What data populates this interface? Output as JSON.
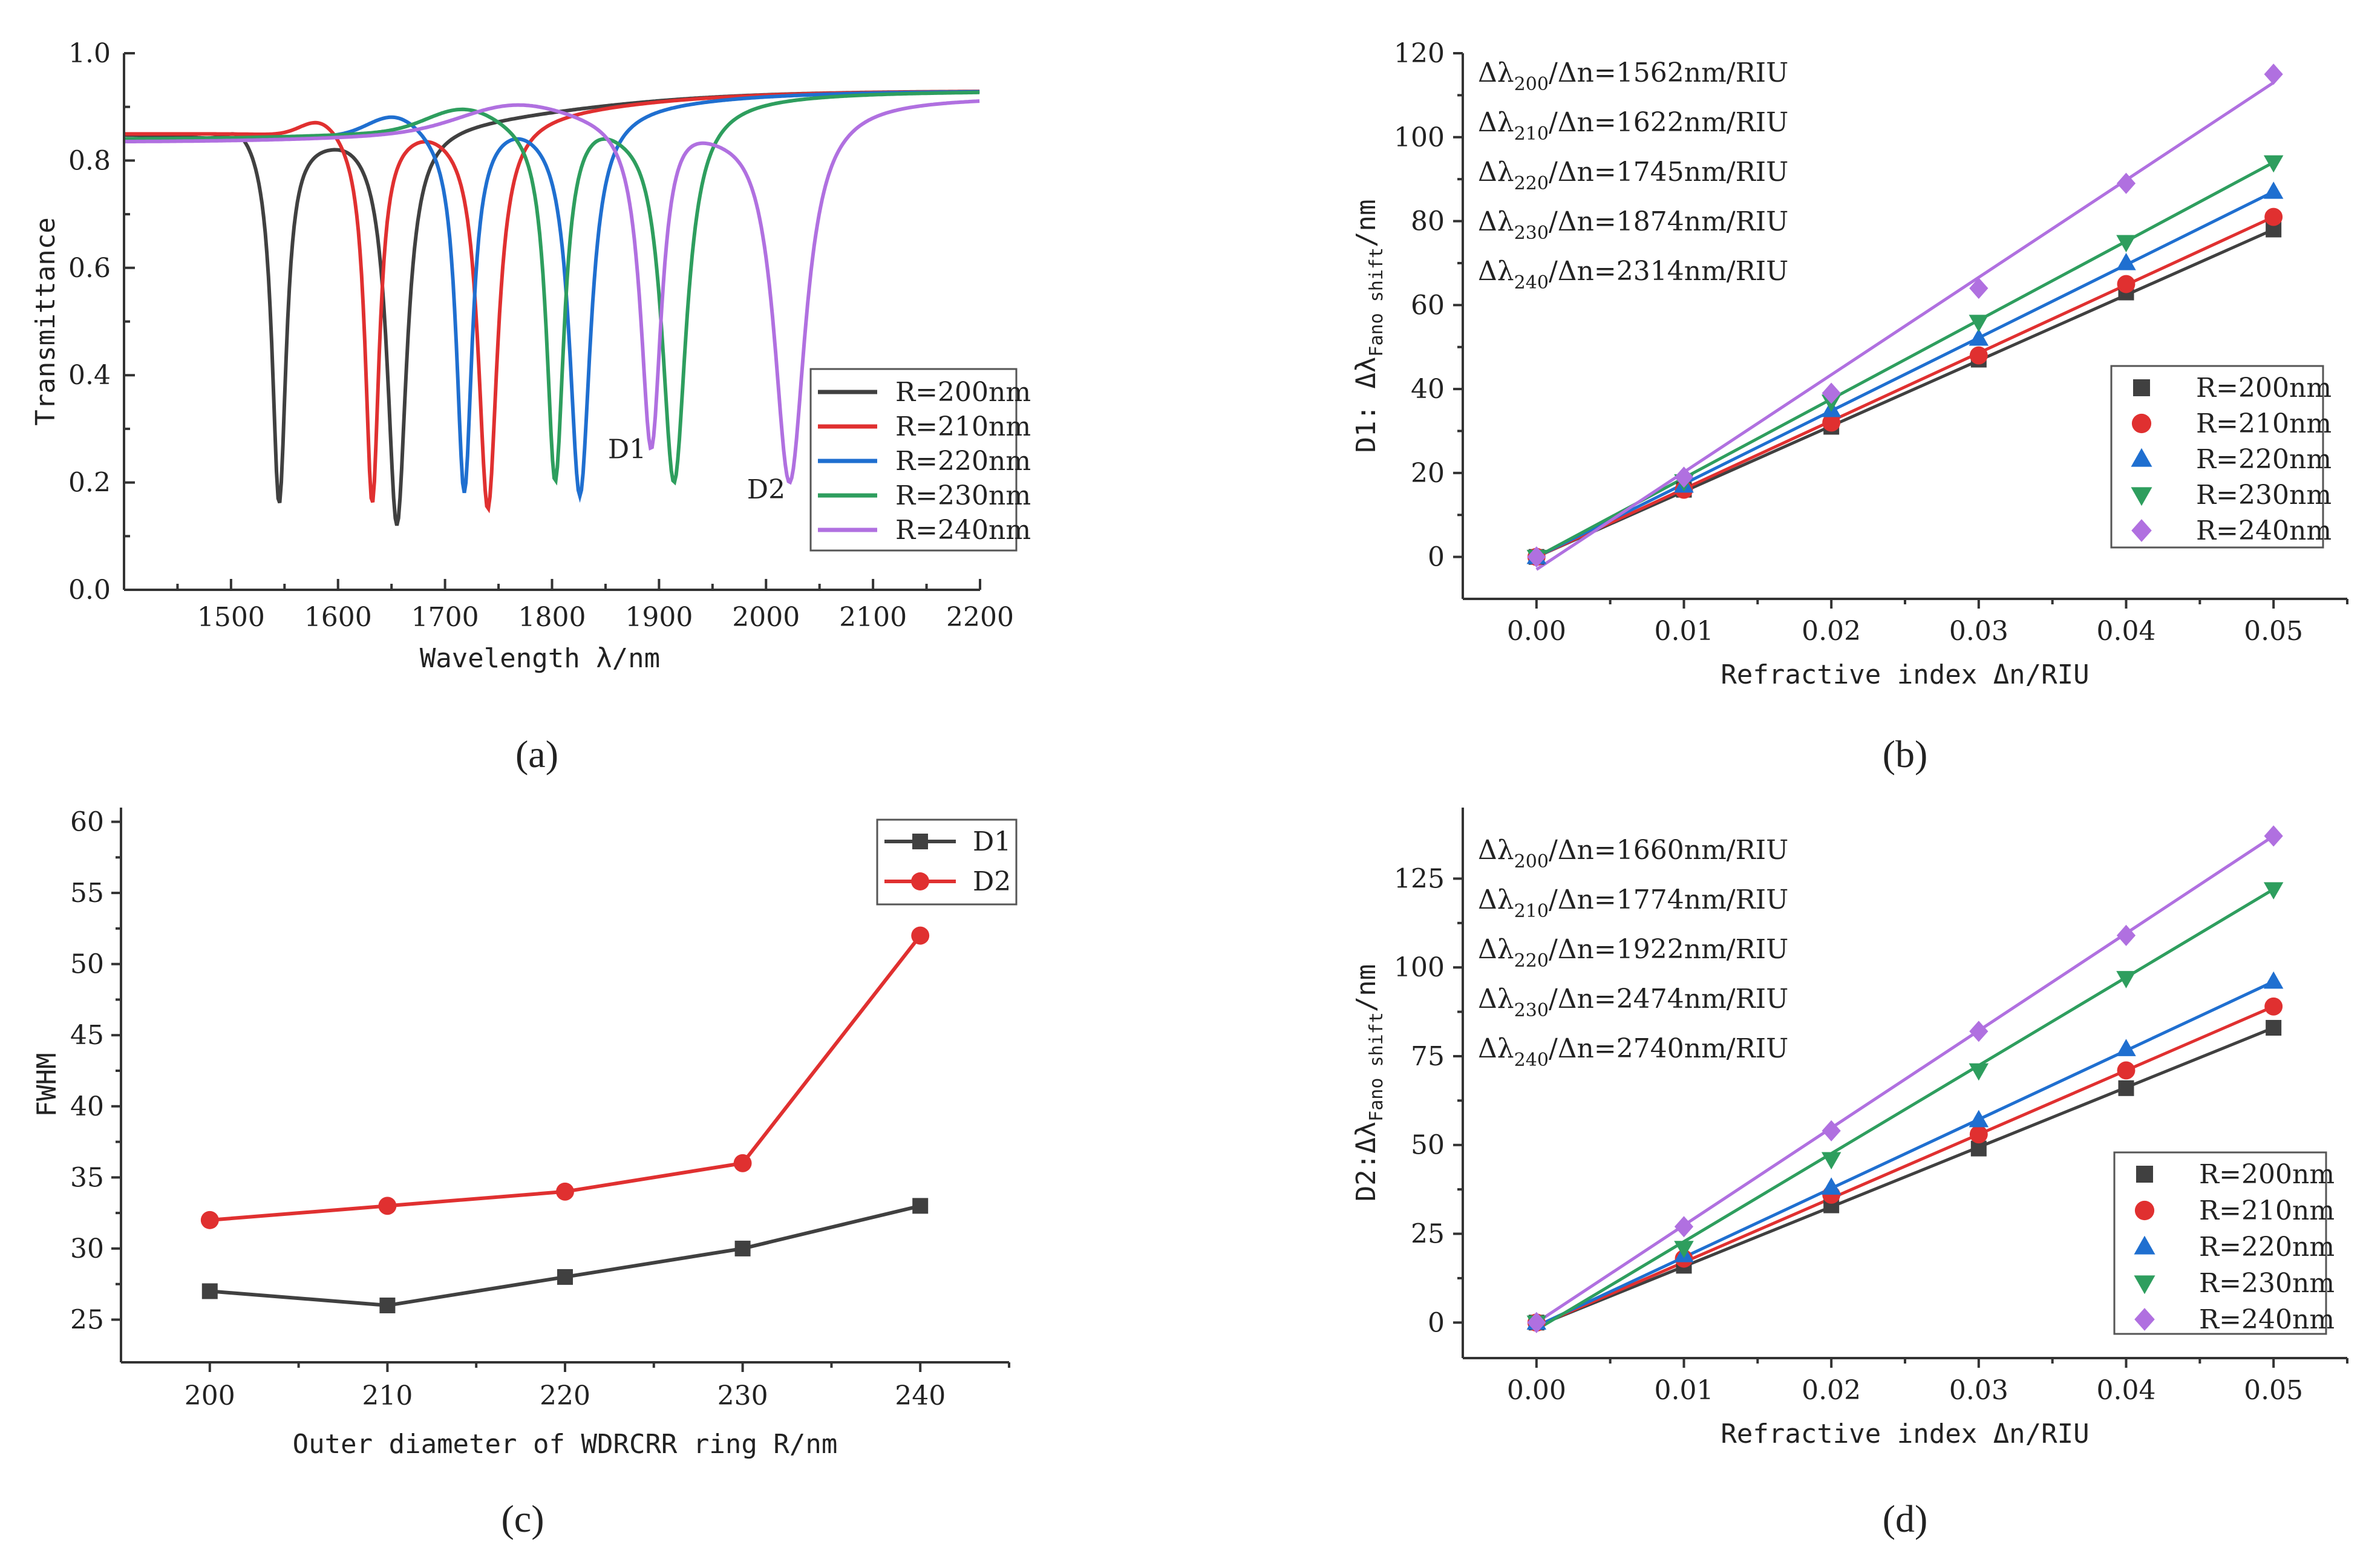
{
  "chart_data": [
    {
      "id": "a",
      "type": "line",
      "panel_label": "(a)",
      "xlabel": "Wavelength λ/nm",
      "ylabel": "Transmittance",
      "xlim": [
        1400,
        2200
      ],
      "ylim": [
        0.0,
        1.0
      ],
      "x_ticks": [
        1500,
        1600,
        1700,
        1800,
        1900,
        2000,
        2100,
        2200
      ],
      "y_ticks": [
        0.0,
        0.2,
        0.4,
        0.6,
        0.8,
        1.0
      ],
      "y_tick_labels": [
        "0.0",
        "0.2",
        "0.4",
        "0.6",
        "0.8",
        "1.0"
      ],
      "legend_position": "bottom-right",
      "annotations": [
        "D1",
        "D2"
      ],
      "series": [
        {
          "name": "R=200nm",
          "color": "#404040",
          "base": 0.85,
          "peak_top": 0.93,
          "dips": [
            {
              "center": 1545,
              "min": 0.16,
              "width": 8,
              "asym_peak": 1510,
              "peak": 0.905
            },
            {
              "center": 1655,
              "min": 0.12,
              "width": 11,
              "asym_peak": 1620,
              "peak": 0.86
            }
          ]
        },
        {
          "name": "R=210nm",
          "color": "#e03030",
          "base": 0.85,
          "peak_top": 0.93,
          "dips": [
            {
              "center": 1632,
              "min": 0.16,
              "width": 8,
              "asym_peak": 1585,
              "peak": 0.92
            },
            {
              "center": 1740,
              "min": 0.15,
              "width": 11,
              "asym_peak": 1695,
              "peak": 0.87
            }
          ]
        },
        {
          "name": "R=220nm",
          "color": "#1f6fd0",
          "base": 0.84,
          "peak_top": 0.93,
          "dips": [
            {
              "center": 1718,
              "min": 0.18,
              "width": 9,
              "asym_peak": 1655,
              "peak": 0.93
            },
            {
              "center": 1826,
              "min": 0.175,
              "width": 12,
              "asym_peak": 1780,
              "peak": 0.88
            }
          ]
        },
        {
          "name": "R=230nm",
          "color": "#2e9e5e",
          "base": 0.84,
          "peak_top": 0.93,
          "dips": [
            {
              "center": 1803,
              "min": 0.2,
              "width": 10,
              "asym_peak": 1720,
              "peak": 0.94
            },
            {
              "center": 1914,
              "min": 0.2,
              "width": 14,
              "asym_peak": 1865,
              "peak": 0.87
            }
          ]
        },
        {
          "name": "R=240nm",
          "color": "#b070e0",
          "base": 0.835,
          "peak_top": 0.92,
          "dips": [
            {
              "center": 1893,
              "min": 0.22,
              "width": 12,
              "asym_peak": 1770,
              "peak": 0.945
            },
            {
              "center": 2022,
              "min": 0.2,
              "width": 18,
              "asym_peak": 1950,
              "peak": 0.86
            }
          ]
        }
      ]
    },
    {
      "id": "b",
      "type": "scatter",
      "panel_label": "(b)",
      "xlabel": "Refractive index Δn/RIU",
      "ylabel": "D1: ΔλFano shift/nm",
      "xlim": [
        -0.005,
        0.055
      ],
      "ylim": [
        -10,
        120
      ],
      "x": [
        0.0,
        0.01,
        0.02,
        0.03,
        0.04,
        0.05
      ],
      "x_tick_labels": [
        "0.00",
        "0.01",
        "0.02",
        "0.03",
        "0.04",
        "0.05"
      ],
      "y_ticks": [
        0,
        20,
        40,
        60,
        80,
        100,
        120
      ],
      "legend_position": "bottom-right",
      "series": [
        {
          "name": "R=200nm",
          "color": "#404040",
          "marker": "square",
          "values": [
            0,
            16,
            31,
            47,
            63,
            78
          ],
          "fit": [
            0,
            78
          ]
        },
        {
          "name": "R=210nm",
          "color": "#e03030",
          "marker": "circle",
          "values": [
            0,
            16,
            32,
            48,
            65,
            81
          ],
          "fit": [
            0,
            81
          ]
        },
        {
          "name": "R=220nm",
          "color": "#1f6fd0",
          "marker": "triangle-up",
          "values": [
            0,
            17,
            35,
            52,
            70,
            87
          ],
          "fit": [
            0,
            87
          ]
        },
        {
          "name": "R=230nm",
          "color": "#2e9e5e",
          "marker": "triangle-down",
          "values": [
            0,
            18,
            37,
            56,
            75,
            94
          ],
          "fit": [
            0,
            94
          ]
        },
        {
          "name": "R=240nm",
          "color": "#b070e0",
          "marker": "diamond",
          "values": [
            0,
            19,
            39,
            64,
            89,
            115
          ],
          "fit": [
            -3,
            113
          ]
        }
      ],
      "sensitivity_labels": [
        {
          "sub": "200",
          "value": "1562"
        },
        {
          "sub": "210",
          "value": "1622"
        },
        {
          "sub": "220",
          "value": "1745"
        },
        {
          "sub": "230",
          "value": "1874"
        },
        {
          "sub": "240",
          "value": "2314"
        }
      ]
    },
    {
      "id": "c",
      "type": "line",
      "panel_label": "(c)",
      "xlabel": "Outer diameter of WDRCRR ring R/nm",
      "ylabel": "FWHM",
      "categories": [
        200,
        210,
        220,
        230,
        240
      ],
      "xlim": [
        195,
        245
      ],
      "ylim": [
        22,
        61
      ],
      "y_ticks": [
        25,
        30,
        35,
        40,
        45,
        50,
        55,
        60
      ],
      "legend_position": "top-right",
      "series": [
        {
          "name": "D1",
          "color": "#404040",
          "marker": "square",
          "values": [
            27,
            26,
            28,
            30,
            33
          ]
        },
        {
          "name": "D2",
          "color": "#e03030",
          "marker": "circle",
          "values": [
            32,
            33,
            34,
            36,
            52
          ]
        }
      ]
    },
    {
      "id": "d",
      "type": "scatter",
      "panel_label": "(d)",
      "xlabel": "Refractive index Δn/RIU",
      "ylabel": "D2:ΔλFano shift/nm",
      "xlim": [
        -0.005,
        0.055
      ],
      "ylim": [
        -10,
        145
      ],
      "x": [
        0.0,
        0.01,
        0.02,
        0.03,
        0.04,
        0.05
      ],
      "x_tick_labels": [
        "0.00",
        "0.01",
        "0.02",
        "0.03",
        "0.04",
        "0.05"
      ],
      "y_ticks": [
        0,
        25,
        50,
        75,
        100,
        125
      ],
      "legend_position": "bottom-right",
      "series": [
        {
          "name": "R=200nm",
          "color": "#404040",
          "marker": "square",
          "values": [
            0,
            16,
            33,
            49,
            66,
            83
          ],
          "fit": [
            -1,
            83
          ]
        },
        {
          "name": "R=210nm",
          "color": "#e03030",
          "marker": "circle",
          "values": [
            0,
            18,
            36,
            53,
            71,
            89
          ],
          "fit": [
            -1,
            89
          ]
        },
        {
          "name": "R=220nm",
          "color": "#1f6fd0",
          "marker": "triangle-up",
          "values": [
            0,
            19,
            38,
            57,
            77,
            96
          ],
          "fit": [
            -1,
            96
          ]
        },
        {
          "name": "R=230nm",
          "color": "#2e9e5e",
          "marker": "triangle-down",
          "values": [
            0,
            21,
            46,
            71,
            97,
            122
          ],
          "fit": [
            -2,
            122
          ]
        },
        {
          "name": "R=240nm",
          "color": "#b070e0",
          "marker": "diamond",
          "values": [
            0,
            27,
            54,
            82,
            109,
            137
          ],
          "fit": [
            0,
            137
          ]
        }
      ],
      "sensitivity_labels": [
        {
          "sub": "200",
          "value": "1660"
        },
        {
          "sub": "210",
          "value": "1774"
        },
        {
          "sub": "220",
          "value": "1922"
        },
        {
          "sub": "230",
          "value": "2474"
        },
        {
          "sub": "240",
          "value": "2740"
        }
      ]
    }
  ],
  "text": {
    "sens_prefix": "Δλ",
    "sens_mid": "/Δn=",
    "sens_unit": "nm/RIU",
    "ylabel_b_prefix": "D1: Δλ",
    "ylabel_d_prefix": "D2:Δλ",
    "ylabel_sub": "Fano shift",
    "ylabel_suffix": "/nm"
  }
}
